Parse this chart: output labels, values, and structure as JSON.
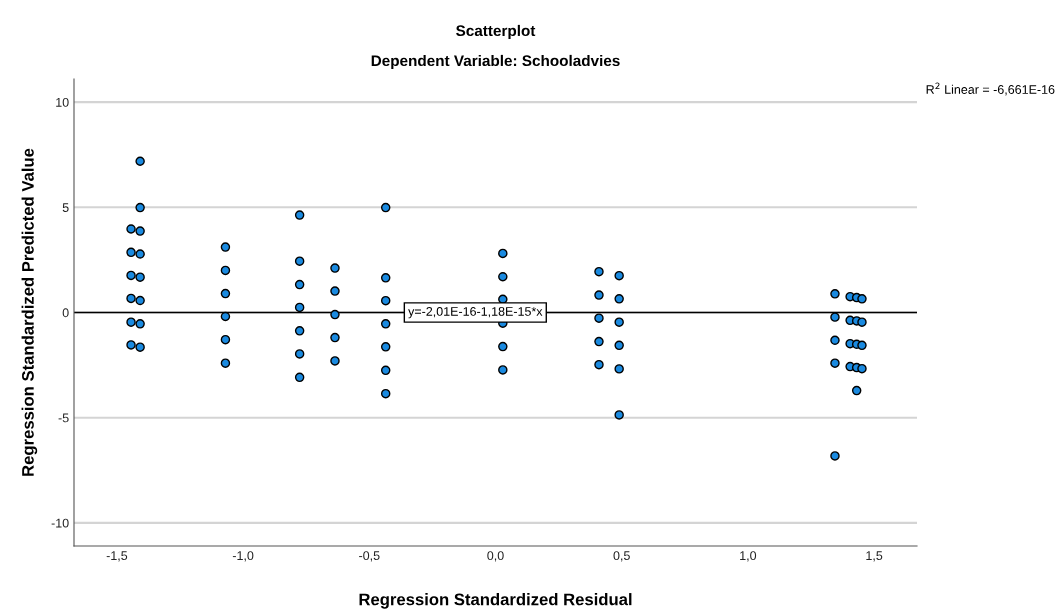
{
  "chart_data": {
    "type": "scatter",
    "title": "Scatterplot",
    "subtitle": "Dependent Variable: Schooladvies",
    "xlabel": "Regression Standardized Residual",
    "ylabel": "Regression Standardized Predicted Value",
    "xlim": [
      -1.67,
      1.67
    ],
    "ylim": [
      -11.1,
      11.1
    ],
    "xticks": [
      {
        "value": -1.5,
        "label": "-1,5"
      },
      {
        "value": -1.0,
        "label": "-1,0"
      },
      {
        "value": -0.5,
        "label": "-0,5"
      },
      {
        "value": 0.0,
        "label": "0,0"
      },
      {
        "value": 0.5,
        "label": "0,5"
      },
      {
        "value": 1.0,
        "label": "1,0"
      },
      {
        "value": 1.5,
        "label": "1,5"
      }
    ],
    "yticks": [
      -10,
      -5,
      0,
      5,
      10
    ],
    "grid": "y",
    "marker": "circle",
    "series": [
      {
        "color": "#1a8ae0",
        "x": [
          -1.444,
          -1.444,
          -1.444,
          -1.444,
          -1.444,
          -1.444,
          -1.408,
          -1.408,
          -1.408,
          -1.408,
          -1.408,
          -1.408,
          -1.408,
          -1.408,
          -1.07,
          -1.07,
          -1.07,
          -1.07,
          -1.07,
          -1.07,
          -0.776,
          -0.776,
          -0.776,
          -0.776,
          -0.776,
          -0.776,
          -0.776,
          -0.636,
          -0.636,
          -0.636,
          -0.636,
          -0.636,
          -0.435,
          -0.435,
          -0.435,
          -0.435,
          -0.435,
          -0.435,
          -0.435,
          0.029,
          0.029,
          0.029,
          0.029,
          0.029,
          0.029,
          0.41,
          0.41,
          0.41,
          0.41,
          0.41,
          0.49,
          0.49,
          0.49,
          0.49,
          0.49,
          0.49,
          1.345,
          1.345,
          1.345,
          1.345,
          1.345,
          1.405,
          1.405,
          1.405,
          1.405,
          1.431,
          1.431,
          1.431,
          1.431,
          1.431,
          1.452,
          1.452,
          1.452,
          1.452
        ],
        "values": [
          3.97,
          2.86,
          1.76,
          0.67,
          -0.46,
          -1.54,
          7.19,
          4.99,
          3.87,
          2.78,
          1.68,
          0.57,
          -0.54,
          -1.65,
          3.11,
          2.0,
          0.9,
          -0.19,
          -1.29,
          -2.41,
          4.63,
          2.44,
          1.33,
          0.24,
          -0.87,
          -1.97,
          -3.08,
          2.11,
          1.02,
          -0.1,
          -1.19,
          -2.3,
          4.99,
          1.65,
          0.56,
          -0.54,
          -1.63,
          -2.75,
          -3.86,
          2.81,
          1.7,
          0.63,
          -0.51,
          -1.62,
          -2.73,
          1.94,
          0.83,
          -0.27,
          -1.38,
          -2.48,
          1.75,
          0.65,
          -0.46,
          -1.56,
          -2.68,
          -4.87,
          0.89,
          -0.22,
          -1.32,
          -2.41,
          -6.82,
          0.75,
          -0.37,
          -1.48,
          -2.57,
          0.71,
          -0.4,
          -1.51,
          -2.62,
          -3.71,
          0.65,
          -0.46,
          -1.56,
          -2.67
        ]
      },
      {
        "type": "line",
        "color": "#000000",
        "marker": "none",
        "x": [
          -1.67,
          1.67
        ],
        "values": [
          0,
          0
        ]
      }
    ],
    "annotations": [
      {
        "text": "y=-2,01E-16-1,18E-15*x",
        "x": -0.08,
        "y": 0
      },
      "R$^{2}$ Linear = -6,661E-16"
    ]
  }
}
